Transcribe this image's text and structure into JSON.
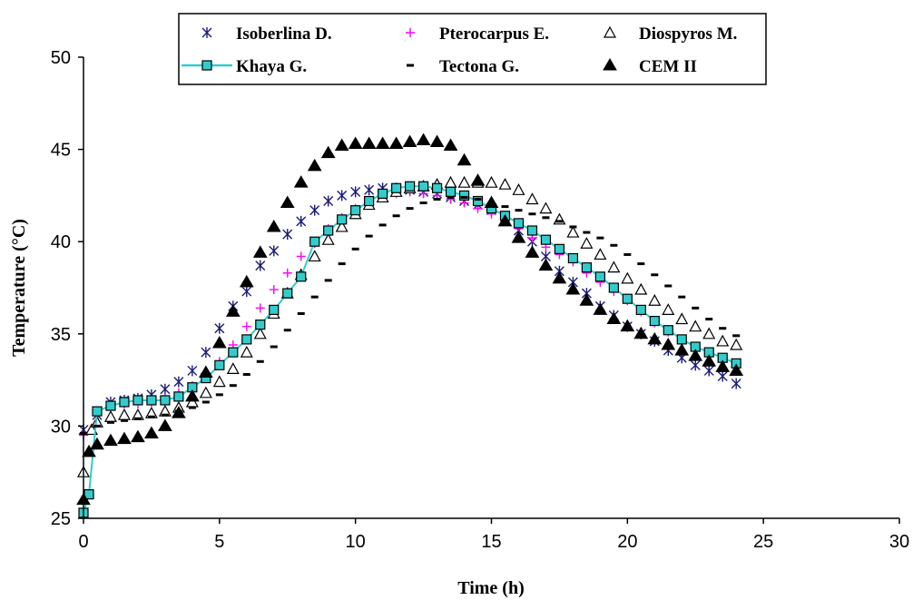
{
  "chart_data": {
    "type": "scatter",
    "xlabel": "Time (h)",
    "ylabel": "Temperature (°C)",
    "xlim": [
      0,
      30
    ],
    "ylim": [
      25,
      50
    ],
    "xticks": [
      0,
      5,
      10,
      15,
      20,
      25,
      30
    ],
    "yticks": [
      25,
      30,
      35,
      40,
      45,
      50
    ],
    "grid": false,
    "legend_position": "top",
    "series": [
      {
        "name": "Isoberlina D.",
        "marker": "asterisk",
        "color": "#1a1a7a",
        "points": [
          [
            0,
            29.8
          ],
          [
            0.5,
            30.6
          ],
          [
            1,
            31.3
          ],
          [
            1.5,
            31.4
          ],
          [
            2,
            31.5
          ],
          [
            2.5,
            31.7
          ],
          [
            3,
            32
          ],
          [
            3.5,
            32.4
          ],
          [
            4,
            33
          ],
          [
            4.5,
            34
          ],
          [
            5,
            35.3
          ],
          [
            5.5,
            36.5
          ],
          [
            6,
            37.3
          ],
          [
            6.5,
            38.7
          ],
          [
            7,
            39.5
          ],
          [
            7.5,
            40.4
          ],
          [
            8,
            41.1
          ],
          [
            8.5,
            41.7
          ],
          [
            9,
            42.2
          ],
          [
            9.5,
            42.5
          ],
          [
            10,
            42.7
          ],
          [
            10.5,
            42.8
          ],
          [
            11,
            42.9
          ],
          [
            11.5,
            42.9
          ],
          [
            12,
            42.8
          ],
          [
            12.5,
            42.7
          ],
          [
            13,
            42.6
          ],
          [
            13.5,
            42.4
          ],
          [
            14,
            42.2
          ],
          [
            14.5,
            42
          ],
          [
            15,
            41.7
          ],
          [
            15.5,
            41.2
          ],
          [
            16,
            40.6
          ],
          [
            16.5,
            40
          ],
          [
            17,
            39.2
          ],
          [
            17.5,
            38.4
          ],
          [
            18,
            37.8
          ],
          [
            18.5,
            37.2
          ],
          [
            19,
            36.5
          ],
          [
            19.5,
            36
          ],
          [
            20,
            35.4
          ],
          [
            20.5,
            35
          ],
          [
            21,
            34.6
          ],
          [
            21.5,
            34.1
          ],
          [
            22,
            33.7
          ],
          [
            22.5,
            33.3
          ],
          [
            23,
            33
          ],
          [
            23.5,
            32.7
          ],
          [
            24,
            32.3
          ]
        ]
      },
      {
        "name": "Pterocarpus E.",
        "marker": "plus",
        "color": "#ff00ff",
        "points": [
          [
            0,
            29.5
          ],
          [
            0.5,
            30.6
          ],
          [
            1,
            31.1
          ],
          [
            1.5,
            31.2
          ],
          [
            2,
            31.2
          ],
          [
            2.5,
            31.3
          ],
          [
            3,
            31.5
          ],
          [
            3.5,
            31.8
          ],
          [
            4,
            32.2
          ],
          [
            4.5,
            32.8
          ],
          [
            5,
            33.5
          ],
          [
            5.5,
            34.4
          ],
          [
            6,
            35.4
          ],
          [
            6.5,
            36.4
          ],
          [
            7,
            37.4
          ],
          [
            7.5,
            38.3
          ],
          [
            8,
            39.2
          ],
          [
            8.5,
            39.9
          ],
          [
            9,
            40.7
          ],
          [
            9.5,
            41.3
          ],
          [
            10,
            41.8
          ],
          [
            10.5,
            42.2
          ],
          [
            11,
            42.5
          ],
          [
            11.5,
            42.6
          ],
          [
            12,
            42.7
          ],
          [
            12.5,
            42.6
          ],
          [
            13,
            42.5
          ],
          [
            13.5,
            42.3
          ],
          [
            14,
            42.1
          ],
          [
            14.5,
            41.8
          ],
          [
            15,
            41.5
          ],
          [
            15.5,
            41.1
          ],
          [
            16,
            40.7
          ],
          [
            16.5,
            40.2
          ],
          [
            17,
            39.7
          ],
          [
            17.5,
            39.3
          ],
          [
            18,
            38.9
          ],
          [
            18.5,
            38.3
          ],
          [
            19,
            37.8
          ],
          [
            19.5,
            37.3
          ],
          [
            20,
            36.8
          ],
          [
            20.5,
            36.2
          ],
          [
            21,
            35.6
          ],
          [
            21.5,
            35.1
          ],
          [
            22,
            34.6
          ],
          [
            22.5,
            34.2
          ],
          [
            23,
            33.8
          ],
          [
            23.5,
            33.5
          ],
          [
            24,
            33.2
          ]
        ]
      },
      {
        "name": "Diospyros M.",
        "marker": "triangle-open",
        "color": "#000000",
        "points": [
          [
            0,
            27.5
          ],
          [
            0.3,
            29.8
          ],
          [
            0.5,
            30.2
          ],
          [
            1,
            30.5
          ],
          [
            1.5,
            30.6
          ],
          [
            2,
            30.6
          ],
          [
            2.5,
            30.7
          ],
          [
            3,
            30.8
          ],
          [
            3.5,
            31
          ],
          [
            4,
            31.3
          ],
          [
            4.5,
            31.8
          ],
          [
            5,
            32.4
          ],
          [
            5.5,
            33.1
          ],
          [
            6,
            34
          ],
          [
            6.5,
            35
          ],
          [
            7,
            36.1
          ],
          [
            7.5,
            37.2
          ],
          [
            8,
            38.2
          ],
          [
            8.5,
            39.2
          ],
          [
            9,
            40.1
          ],
          [
            9.5,
            40.8
          ],
          [
            10,
            41.5
          ],
          [
            10.5,
            42
          ],
          [
            11,
            42.4
          ],
          [
            11.5,
            42.7
          ],
          [
            12,
            42.9
          ],
          [
            12.5,
            43
          ],
          [
            13,
            43.1
          ],
          [
            13.5,
            43.2
          ],
          [
            14,
            43.2
          ],
          [
            14.5,
            43.2
          ],
          [
            15,
            43.2
          ],
          [
            15.5,
            43.1
          ],
          [
            16,
            42.8
          ],
          [
            16.5,
            42.3
          ],
          [
            17,
            41.8
          ],
          [
            17.5,
            41.2
          ],
          [
            18,
            40.5
          ],
          [
            18.5,
            39.9
          ],
          [
            19,
            39.3
          ],
          [
            19.5,
            38.6
          ],
          [
            20,
            38
          ],
          [
            20.5,
            37.4
          ],
          [
            21,
            36.8
          ],
          [
            21.5,
            36.3
          ],
          [
            22,
            35.8
          ],
          [
            22.5,
            35.4
          ],
          [
            23,
            35
          ],
          [
            23.5,
            34.6
          ],
          [
            24,
            34.4
          ]
        ]
      },
      {
        "name": "Khaya G.",
        "marker": "square",
        "color": "#33cccc",
        "line": true,
        "points": [
          [
            0,
            25.3
          ],
          [
            0.2,
            26.3
          ],
          [
            0.5,
            30.8
          ],
          [
            1,
            31.1
          ],
          [
            1.5,
            31.3
          ],
          [
            2,
            31.4
          ],
          [
            2.5,
            31.4
          ],
          [
            3,
            31.4
          ],
          [
            3.5,
            31.6
          ],
          [
            4,
            32.1
          ],
          [
            4.5,
            32.6
          ],
          [
            5,
            33.3
          ],
          [
            5.5,
            34
          ],
          [
            6,
            34.7
          ],
          [
            6.5,
            35.5
          ],
          [
            7,
            36.3
          ],
          [
            7.5,
            37.2
          ],
          [
            8,
            38.1
          ],
          [
            8.5,
            40
          ],
          [
            9,
            40.6
          ],
          [
            9.5,
            41.2
          ],
          [
            10,
            41.7
          ],
          [
            10.5,
            42.2
          ],
          [
            11,
            42.6
          ],
          [
            11.5,
            42.9
          ],
          [
            12,
            43
          ],
          [
            12.5,
            43
          ],
          [
            13,
            42.9
          ],
          [
            13.5,
            42.7
          ],
          [
            14,
            42.5
          ],
          [
            14.5,
            42.2
          ],
          [
            15,
            41.8
          ],
          [
            15.5,
            41.4
          ],
          [
            16,
            41
          ],
          [
            16.5,
            40.6
          ],
          [
            17,
            40.1
          ],
          [
            17.5,
            39.6
          ],
          [
            18,
            39.1
          ],
          [
            18.5,
            38.6
          ],
          [
            19,
            38.1
          ],
          [
            19.5,
            37.5
          ],
          [
            20,
            36.9
          ],
          [
            20.5,
            36.3
          ],
          [
            21,
            35.7
          ],
          [
            21.5,
            35.2
          ],
          [
            22,
            34.7
          ],
          [
            22.5,
            34.3
          ],
          [
            23,
            34
          ],
          [
            23.5,
            33.7
          ],
          [
            24,
            33.4
          ]
        ]
      },
      {
        "name": "Tectona G.",
        "marker": "dash",
        "color": "#000000",
        "points": [
          [
            0,
            29.6
          ],
          [
            0.5,
            30
          ],
          [
            1,
            30.2
          ],
          [
            1.5,
            30.3
          ],
          [
            2,
            30.4
          ],
          [
            2.5,
            30.5
          ],
          [
            3,
            30.6
          ],
          [
            3.5,
            30.8
          ],
          [
            4,
            31
          ],
          [
            4.5,
            31.3
          ],
          [
            5,
            31.7
          ],
          [
            5.5,
            32.2
          ],
          [
            6,
            32.8
          ],
          [
            6.5,
            33.5
          ],
          [
            7,
            34.3
          ],
          [
            7.5,
            35.2
          ],
          [
            8,
            36.1
          ],
          [
            8.5,
            37
          ],
          [
            9,
            37.9
          ],
          [
            9.5,
            38.8
          ],
          [
            10,
            39.6
          ],
          [
            10.5,
            40.3
          ],
          [
            11,
            40.9
          ],
          [
            11.5,
            41.4
          ],
          [
            12,
            41.8
          ],
          [
            12.5,
            42.1
          ],
          [
            13,
            42.3
          ],
          [
            13.5,
            42.4
          ],
          [
            14,
            42.4
          ],
          [
            14.5,
            42.3
          ],
          [
            15,
            42.1
          ],
          [
            15.5,
            41.9
          ],
          [
            16,
            41.7
          ],
          [
            16.5,
            41.5
          ],
          [
            17,
            41.3
          ],
          [
            17.5,
            41.1
          ],
          [
            18,
            40.8
          ],
          [
            18.5,
            40.5
          ],
          [
            19,
            40.2
          ],
          [
            19.5,
            39.8
          ],
          [
            20,
            39.3
          ],
          [
            20.5,
            38.8
          ],
          [
            21,
            38.2
          ],
          [
            21.5,
            37.6
          ],
          [
            22,
            37
          ],
          [
            22.5,
            36.4
          ],
          [
            23,
            35.8
          ],
          [
            23.5,
            35.3
          ],
          [
            24,
            34.9
          ]
        ]
      },
      {
        "name": "CEM II",
        "marker": "triangle-filled",
        "color": "#000000",
        "points": [
          [
            0,
            26
          ],
          [
            0.2,
            28.6
          ],
          [
            0.5,
            29
          ],
          [
            1,
            29.2
          ],
          [
            1.5,
            29.3
          ],
          [
            2,
            29.4
          ],
          [
            2.5,
            29.6
          ],
          [
            3,
            30
          ],
          [
            3.5,
            30.7
          ],
          [
            4,
            31.6
          ],
          [
            4.5,
            32.9
          ],
          [
            5,
            34.5
          ],
          [
            5.5,
            36.2
          ],
          [
            6,
            37.8
          ],
          [
            6.5,
            39.4
          ],
          [
            7,
            40.8
          ],
          [
            7.5,
            42.1
          ],
          [
            8,
            43.2
          ],
          [
            8.5,
            44.1
          ],
          [
            9,
            44.8
          ],
          [
            9.5,
            45.2
          ],
          [
            10,
            45.3
          ],
          [
            10.5,
            45.3
          ],
          [
            11,
            45.3
          ],
          [
            11.5,
            45.3
          ],
          [
            12,
            45.4
          ],
          [
            12.5,
            45.5
          ],
          [
            13,
            45.4
          ],
          [
            13.5,
            45.2
          ],
          [
            14,
            44.4
          ],
          [
            14.5,
            43.3
          ],
          [
            15,
            42.1
          ],
          [
            15.5,
            41.1
          ],
          [
            16,
            40.2
          ],
          [
            16.5,
            39.4
          ],
          [
            17,
            38.7
          ],
          [
            17.5,
            38
          ],
          [
            18,
            37.4
          ],
          [
            18.5,
            36.8
          ],
          [
            19,
            36.3
          ],
          [
            19.5,
            35.8
          ],
          [
            20,
            35.4
          ],
          [
            20.5,
            35
          ],
          [
            21,
            34.7
          ],
          [
            21.5,
            34.4
          ],
          [
            22,
            34.1
          ],
          [
            22.5,
            33.8
          ],
          [
            23,
            33.5
          ],
          [
            23.5,
            33.2
          ],
          [
            24,
            33
          ]
        ]
      }
    ]
  }
}
